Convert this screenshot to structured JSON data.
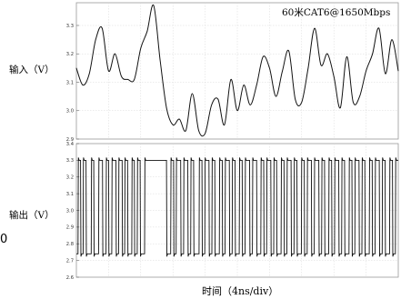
{
  "chart_data": [
    {
      "type": "line",
      "ylabel": "输入（V）",
      "xlabel": "",
      "annotation": "60米CAT6@1650Mbps",
      "ylim": [
        2.9,
        3.38
      ],
      "yticks": [
        "2.9",
        "3.0",
        "3.1",
        "3.2",
        "3.3"
      ],
      "ytick_values": [
        2.9,
        3.0,
        3.1,
        3.2,
        3.3
      ],
      "grid": true,
      "x_divisions": 10,
      "x": [
        0,
        2,
        4,
        6,
        8,
        10,
        12,
        14,
        16,
        18,
        20,
        22,
        24,
        26,
        28,
        30,
        32,
        34,
        36,
        38,
        40,
        42,
        44,
        46,
        48,
        50,
        52,
        54,
        56,
        58,
        60,
        62,
        64,
        66,
        68,
        70,
        72,
        74,
        76,
        78,
        80,
        82,
        84,
        86,
        88,
        90,
        92,
        94,
        96,
        98,
        100
      ],
      "series": [
        {
          "values": [
            3.15,
            3.09,
            3.13,
            3.25,
            3.29,
            3.14,
            3.2,
            3.12,
            3.11,
            3.11,
            3.22,
            3.28,
            3.37,
            3.18,
            3.01,
            2.95,
            2.97,
            2.93,
            3.06,
            2.93,
            2.92,
            3.02,
            3.04,
            2.95,
            3.11,
            3.0,
            3.09,
            3.02,
            3.09,
            3.19,
            3.15,
            3.05,
            3.14,
            3.21,
            3.04,
            3.03,
            3.15,
            3.29,
            3.16,
            3.2,
            3.12,
            3.01,
            3.19,
            3.03,
            3.05,
            3.14,
            3.2,
            3.29,
            3.13,
            3.25,
            3.14
          ]
        }
      ]
    },
    {
      "type": "line",
      "ylabel": "输出（V）",
      "xlabel": "时间（4ns/div）",
      "ylim": [
        2.6,
        3.4
      ],
      "yticks": [
        "2.6",
        "2.7",
        "2.8",
        "2.9",
        "3.0",
        "3.1",
        "3.2",
        "3.3",
        "3.4"
      ],
      "ytick_values": [
        2.6,
        2.7,
        2.8,
        2.9,
        3.0,
        3.1,
        3.2,
        3.3,
        3.4
      ],
      "grid": true,
      "x_divisions": 10,
      "levels": {
        "high": 3.3,
        "low": 2.74
      },
      "transitions": [
        0.5,
        1.3,
        2.1,
        3.0,
        4.6,
        5.4,
        6.9,
        8.1,
        9.2,
        10.0,
        11.0,
        12.3,
        13.1,
        14.2,
        15.0,
        15.9,
        17.2,
        18.0,
        18.9,
        19.8,
        21.2,
        28.0,
        29.3,
        30.2,
        31.0,
        32.4,
        33.3,
        34.6,
        35.5,
        36.4,
        38.1,
        39.0,
        39.9,
        41.2,
        42.1,
        43.0,
        44.4,
        45.3,
        46.2,
        47.5,
        48.4,
        49.3,
        50.6,
        51.5,
        52.4,
        53.8,
        54.7,
        56.0,
        57.3,
        58.2,
        59.1,
        60.4,
        61.3,
        62.2,
        63.6,
        64.5,
        65.4,
        66.7,
        67.6,
        68.5,
        69.9,
        70.8,
        71.7,
        73.0,
        73.9,
        75.3,
        76.2,
        77.1,
        78.4,
        79.3,
        80.2,
        81.5,
        82.4,
        83.3,
        84.7,
        85.6,
        86.5,
        87.8,
        88.7,
        89.6,
        91.0,
        91.9,
        92.8,
        94.1,
        95.0,
        95.9,
        97.3,
        98.2,
        99.1
      ]
    }
  ],
  "stray_text": "0"
}
